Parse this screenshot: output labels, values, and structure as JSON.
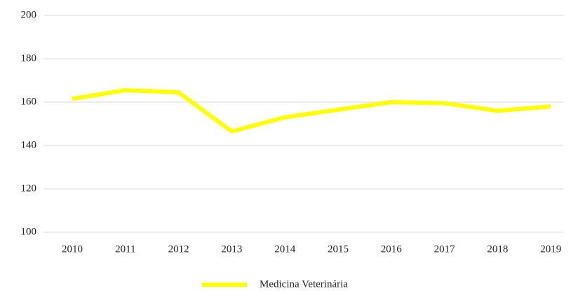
{
  "chart_data": {
    "type": "line",
    "categories": [
      "2010",
      "2011",
      "2012",
      "2013",
      "2014",
      "2015",
      "2016",
      "2017",
      "2018",
      "2019"
    ],
    "series": [
      {
        "name": "Medicina Veterinária",
        "color": "#ffff00",
        "values": [
          161.5,
          165.5,
          164.5,
          146.5,
          153,
          156.5,
          160,
          159.5,
          156,
          158
        ]
      }
    ],
    "ylim": [
      100,
      200
    ],
    "yticks": [
      100,
      120,
      140,
      160,
      180,
      200
    ],
    "grid": true,
    "legend": "bottom"
  }
}
